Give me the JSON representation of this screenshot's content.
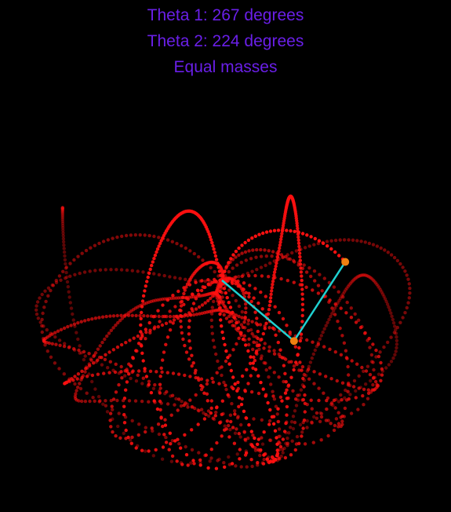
{
  "colors": {
    "background": "#000000",
    "text": "#6a1fe8",
    "trail": "#ff1010",
    "trail_faded": "#6a0000",
    "rod": "#1fd0d0",
    "bob": "#f08010"
  },
  "info": {
    "theta1": "Theta 1: 267 degrees",
    "theta2": "Theta 2: 224 degrees",
    "masses": "Equal masses"
  },
  "simulation": {
    "theta1_deg": 267,
    "theta2_deg": 224,
    "mass_ratio": 1
  },
  "icons": {
    "bob_1": "pendulum-bob",
    "bob_2": "pendulum-bob",
    "pivot": "pivot-point"
  }
}
